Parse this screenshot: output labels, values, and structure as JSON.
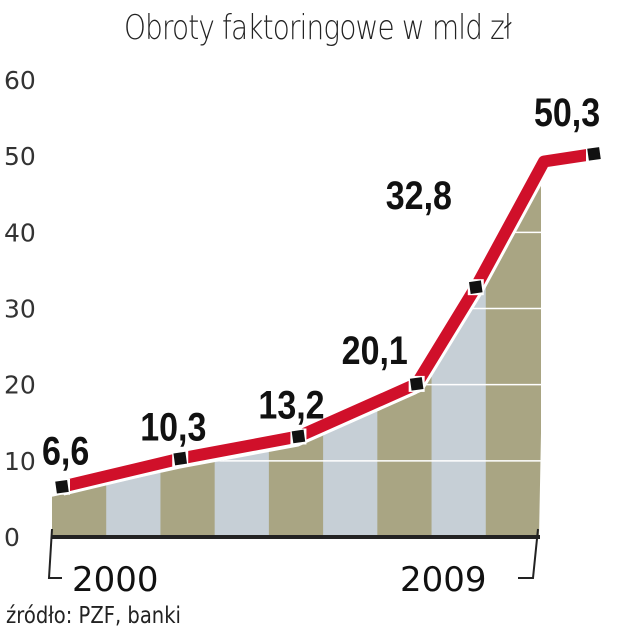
{
  "chart_data": {
    "type": "line",
    "title": "Obroty faktoringowe w mld zł",
    "xlabel": "",
    "ylabel": "",
    "x": [
      2000,
      2002,
      2004,
      2006,
      2007,
      2009
    ],
    "values": [
      6.6,
      10.3,
      13.2,
      20.1,
      32.8,
      50.3
    ],
    "data_labels": [
      "6,6",
      "10,3",
      "13,2",
      "20,1",
      "32,8",
      "50,3"
    ],
    "x_tick_labels": [
      "2000",
      "2009"
    ],
    "xlim": [
      2000,
      2009
    ],
    "y_ticks": [
      "0",
      "10",
      "20",
      "30",
      "40",
      "50",
      "60"
    ],
    "ylim": [
      0,
      60
    ],
    "grid": true,
    "source": "źródło: PZF, banki",
    "colors": {
      "line": "#d0102a",
      "marker": "#111111",
      "stripe_a": "#a9a583",
      "stripe_b": "#c6cfd6"
    }
  }
}
